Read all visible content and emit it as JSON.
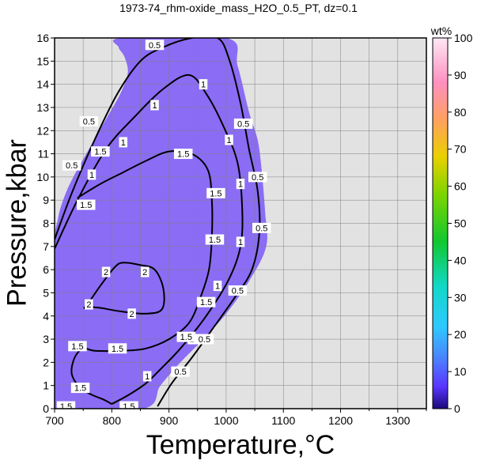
{
  "chart_data": {
    "type": "heatmap",
    "title": "1973-74_rhm-oxide_mass_H2O_0.5_PT, dz=0.1",
    "xlabel": "Temperature,°C",
    "ylabel": "Pressure,kbar",
    "xlim": [
      700,
      1350
    ],
    "ylim": [
      0,
      16
    ],
    "xticks": [
      700,
      800,
      900,
      1000,
      1100,
      1200,
      1300
    ],
    "yticks": [
      0,
      1,
      2,
      3,
      4,
      5,
      6,
      7,
      8,
      9,
      10,
      11,
      12,
      13,
      14,
      15,
      16
    ],
    "grid": true,
    "colorbar": {
      "label": "wt%",
      "range": [
        0,
        100
      ],
      "ticks": [
        0,
        10,
        20,
        30,
        40,
        50,
        60,
        70,
        80,
        90,
        100
      ]
    },
    "field_color": "#8a6cf5",
    "background_color": "#e2e2e2",
    "field_boundary": [
      [
        700,
        6.7
      ],
      [
        706,
        8.2
      ],
      [
        718,
        9.2
      ],
      [
        735,
        10.1
      ],
      [
        760,
        11.2
      ],
      [
        790,
        12.5
      ],
      [
        815,
        13.6
      ],
      [
        828,
        14.5
      ],
      [
        822,
        15.2
      ],
      [
        812,
        15.6
      ],
      [
        818,
        16
      ],
      [
        1000,
        16
      ],
      [
        1020,
        14.8
      ],
      [
        1040,
        12.8
      ],
      [
        1055,
        11.6
      ],
      [
        1062,
        10.3
      ],
      [
        1068,
        8.5
      ],
      [
        1070,
        7.0
      ],
      [
        1040,
        5.5
      ],
      [
        1000,
        4.1
      ],
      [
        960,
        3.0
      ],
      [
        920,
        2.0
      ],
      [
        885,
        1.0
      ],
      [
        855,
        0
      ],
      [
        700,
        0
      ]
    ],
    "contours": [
      {
        "level": 0.5,
        "points": [
          [
            700,
            7.3
          ],
          [
            730,
            9.3
          ],
          [
            770,
            11.6
          ],
          [
            810,
            13.6
          ],
          [
            850,
            15.0
          ],
          [
            890,
            15.6
          ],
          [
            940,
            16.0
          ],
          [
            985,
            16.0
          ],
          [
            1005,
            15.1
          ],
          [
            1025,
            13.2
          ],
          [
            1040,
            11.2
          ],
          [
            1055,
            9.4
          ],
          [
            1058,
            7.6
          ],
          [
            1045,
            6.0
          ],
          [
            1015,
            4.8
          ],
          [
            975,
            3.4
          ],
          [
            940,
            2.2
          ],
          [
            905,
            1.1
          ],
          [
            880,
            0.1
          ]
        ]
      },
      {
        "level": 1.0,
        "points": [
          [
            700,
            6.9
          ],
          [
            740,
            9.0
          ],
          [
            790,
            11.2
          ],
          [
            840,
            12.6
          ],
          [
            890,
            13.8
          ],
          [
            935,
            14.4
          ],
          [
            965,
            13.6
          ],
          [
            995,
            12.2
          ],
          [
            1020,
            10.6
          ],
          [
            1028,
            8.6
          ],
          [
            1025,
            7.0
          ],
          [
            1005,
            5.6
          ],
          [
            965,
            4.0
          ],
          [
            920,
            2.6
          ],
          [
            885,
            1.7
          ],
          [
            860,
            1.1
          ],
          [
            830,
            0.6
          ],
          [
            800,
            0.2
          ]
        ]
      },
      {
        "level": 1.5,
        "points": [
          [
            740,
            9.1
          ],
          [
            780,
            9.7
          ],
          [
            820,
            10.2
          ],
          [
            860,
            10.7
          ],
          [
            900,
            11.1
          ],
          [
            940,
            11.0
          ],
          [
            968,
            10.3
          ],
          [
            975,
            9.0
          ],
          [
            975,
            7.4
          ],
          [
            970,
            6.0
          ],
          [
            955,
            4.8
          ],
          [
            935,
            3.7
          ],
          [
            900,
            3.0
          ],
          [
            860,
            2.6
          ],
          [
            820,
            2.5
          ],
          [
            770,
            2.5
          ],
          [
            750,
            2.6
          ],
          [
            735,
            2.2
          ],
          [
            730,
            1.5
          ],
          [
            745,
            0.9
          ],
          [
            765,
            0.6
          ],
          [
            785,
            0.4
          ],
          [
            800,
            0.2
          ]
        ]
      },
      {
        "level": 2.0,
        "points": [
          [
            755,
            4.4
          ],
          [
            780,
            5.3
          ],
          [
            805,
            6.1
          ],
          [
            820,
            6.3
          ],
          [
            850,
            6.2
          ],
          [
            875,
            6.0
          ],
          [
            890,
            5.2
          ],
          [
            888,
            4.3
          ],
          [
            860,
            4.1
          ],
          [
            815,
            4.2
          ],
          [
            780,
            4.35
          ],
          [
            755,
            4.4
          ]
        ]
      }
    ],
    "contour_labels": [
      {
        "text": "0.5",
        "x": 875,
        "y": 15.7
      },
      {
        "text": "0.5",
        "x": 1030,
        "y": 12.3
      },
      {
        "text": "0.5",
        "x": 1055,
        "y": 10.0
      },
      {
        "text": "0.5",
        "x": 1062,
        "y": 7.8
      },
      {
        "text": "0.5",
        "x": 1020,
        "y": 5.1
      },
      {
        "text": "0.5",
        "x": 962,
        "y": 3.0
      },
      {
        "text": "0.5",
        "x": 920,
        "y": 1.6
      },
      {
        "text": "0.5",
        "x": 760,
        "y": 12.4
      },
      {
        "text": "0.5",
        "x": 730,
        "y": 10.5
      },
      {
        "text": "1",
        "x": 820,
        "y": 11.5
      },
      {
        "text": "1",
        "x": 875,
        "y": 13.1
      },
      {
        "text": "1",
        "x": 960,
        "y": 14.0
      },
      {
        "text": "1",
        "x": 1005,
        "y": 11.6
      },
      {
        "text": "1",
        "x": 1025,
        "y": 9.7
      },
      {
        "text": "1",
        "x": 1025,
        "y": 7.2
      },
      {
        "text": "1",
        "x": 985,
        "y": 5.3
      },
      {
        "text": "1",
        "x": 940,
        "y": 3.0
      },
      {
        "text": "1",
        "x": 862,
        "y": 1.4
      },
      {
        "text": "1",
        "x": 765,
        "y": 10.1
      },
      {
        "text": "1.5",
        "x": 780,
        "y": 11.1
      },
      {
        "text": "1.5",
        "x": 755,
        "y": 8.8
      },
      {
        "text": "1.5",
        "x": 925,
        "y": 11.0
      },
      {
        "text": "1.5",
        "x": 982,
        "y": 9.3
      },
      {
        "text": "1.5",
        "x": 980,
        "y": 7.3
      },
      {
        "text": "1.5",
        "x": 965,
        "y": 4.6
      },
      {
        "text": "1.5",
        "x": 930,
        "y": 3.1
      },
      {
        "text": "1.5",
        "x": 810,
        "y": 2.6
      },
      {
        "text": "1.5",
        "x": 740,
        "y": 2.7
      },
      {
        "text": "1.5",
        "x": 745,
        "y": 0.9
      },
      {
        "text": "1.5",
        "x": 720,
        "y": 0.1
      },
      {
        "text": "1.5",
        "x": 830,
        "y": 0.1
      },
      {
        "text": "2",
        "x": 790,
        "y": 5.9
      },
      {
        "text": "2",
        "x": 858,
        "y": 5.9
      },
      {
        "text": "2",
        "x": 760,
        "y": 4.5
      },
      {
        "text": "2",
        "x": 835,
        "y": 4.1
      }
    ]
  }
}
